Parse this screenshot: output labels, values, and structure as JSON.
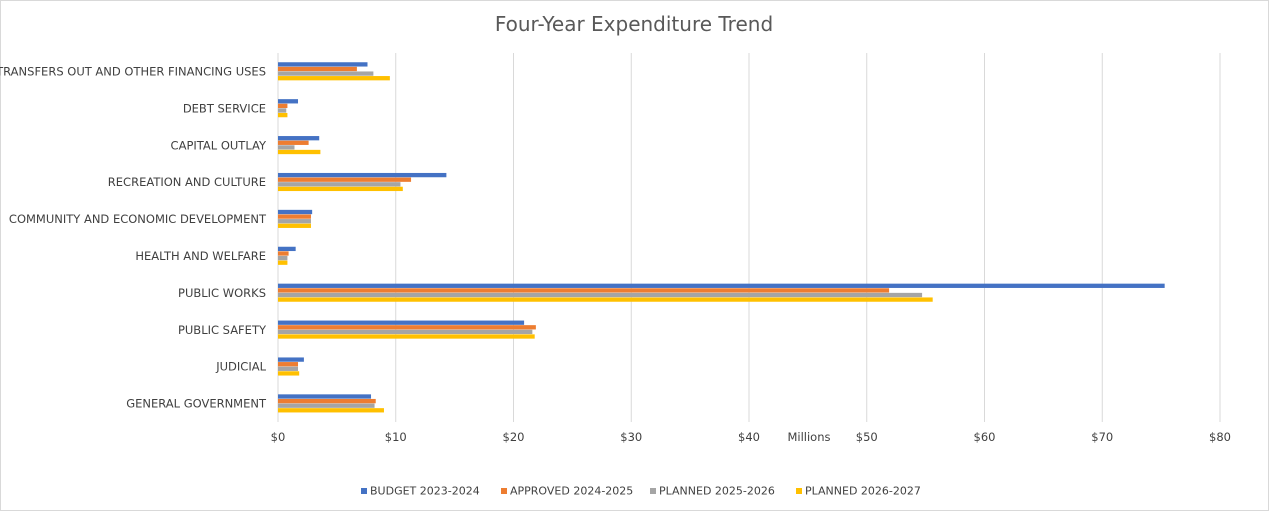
{
  "chart_data": {
    "type": "bar",
    "orientation": "horizontal",
    "title": "Four-Year Expenditure Trend",
    "xlabel": "Millions",
    "ylabel": "",
    "xlim": [
      0,
      80
    ],
    "x_ticks": [
      0,
      10,
      20,
      30,
      40,
      50,
      60,
      70,
      80
    ],
    "x_tick_labels": [
      "$0",
      "$10",
      "$20",
      "$30",
      "$40",
      "$50",
      "$60",
      "$70",
      "$80"
    ],
    "grid": "vertical",
    "legend_position": "bottom",
    "categories": [
      "TRANSFERS OUT AND OTHER FINANCING USES",
      "DEBT SERVICE",
      "CAPITAL OUTLAY",
      "RECREATION AND CULTURE",
      "COMMUNITY AND ECONOMIC DEVELOPMENT",
      "HEALTH AND WELFARE",
      "PUBLIC WORKS",
      "PUBLIC SAFETY",
      "JUDICIAL",
      "GENERAL GOVERNMENT"
    ],
    "series": [
      {
        "name": "BUDGET 2023-2024",
        "color": "#4472c4",
        "values": [
          7.6,
          1.7,
          3.5,
          14.3,
          2.9,
          1.5,
          75.3,
          20.9,
          2.2,
          7.9
        ]
      },
      {
        "name": "APPROVED 2024-2025",
        "color": "#ed7d31",
        "values": [
          6.7,
          0.8,
          2.6,
          11.3,
          2.8,
          0.9,
          51.9,
          21.9,
          1.7,
          8.3
        ]
      },
      {
        "name": "PLANNED 2025-2026",
        "color": "#a5a5a5",
        "values": [
          8.1,
          0.7,
          1.4,
          10.4,
          2.8,
          0.8,
          54.7,
          21.6,
          1.7,
          8.2
        ]
      },
      {
        "name": "PLANNED 2026-2027",
        "color": "#ffc000",
        "values": [
          9.5,
          0.8,
          3.6,
          10.6,
          2.8,
          0.8,
          55.6,
          21.8,
          1.8,
          9.0
        ]
      }
    ]
  }
}
